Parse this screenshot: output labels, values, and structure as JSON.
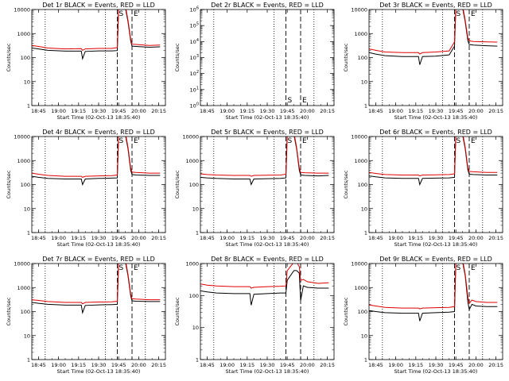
{
  "figure": {
    "x_tick_labels": [
      "18:45",
      "19:00",
      "19:15",
      "19:30",
      "19:45",
      "20:00",
      "20:15"
    ],
    "xlabel": "Start Time (02-Oct-13 18:35:40)",
    "ylabel": "Counts/sec",
    "colors": {
      "events": "#000000",
      "lld": "#e00000",
      "background": "#ffffff"
    }
  },
  "chart_data": [
    {
      "type": "line",
      "title": "Det 1r BLACK = Events, RED = LLD",
      "ylog": true,
      "yrange": [
        1,
        10000
      ],
      "ytick_labels": [
        "1",
        "10",
        "100",
        "1000",
        "10000"
      ],
      "xrange_min": [
        0,
        100
      ],
      "dotted_lines_min": [
        10,
        55,
        85
      ],
      "dashed_lines_min": [
        64,
        75
      ],
      "markers": [
        {
          "label": "S",
          "x_min": 64
        },
        {
          "label": "E",
          "x_min": 75
        }
      ],
      "series": [
        {
          "color": "#000000",
          "x_min": [
            0,
            5,
            12,
            25,
            37,
            38,
            40,
            50,
            60,
            64,
            65,
            70,
            72,
            74,
            75,
            78,
            88,
            96
          ],
          "y": [
            250,
            230,
            200,
            185,
            185,
            90,
            180,
            190,
            190,
            195,
            12000,
            12000,
            3000,
            500,
            300,
            290,
            270,
            280
          ]
        },
        {
          "color": "#e00000",
          "x_min": [
            0,
            5,
            12,
            25,
            37,
            38,
            40,
            50,
            60,
            64,
            65,
            70,
            72,
            74,
            75,
            78,
            88,
            96
          ],
          "y": [
            320,
            290,
            250,
            230,
            235,
            200,
            230,
            240,
            240,
            260,
            15000,
            15000,
            3500,
            600,
            360,
            350,
            320,
            330
          ]
        }
      ]
    },
    {
      "type": "line",
      "title": "Det 2r BLACK = Events, RED = LLD",
      "ylog": true,
      "yrange": [
        1,
        1000000
      ],
      "ytick_labels": [
        "10^0",
        "10^1",
        "10^2",
        "10^3",
        "10^4",
        "10^5",
        "10^6"
      ],
      "xrange_min": [
        0,
        100
      ],
      "dotted_lines_min": [
        10,
        55,
        85
      ],
      "dashed_lines_min": [
        64,
        75
      ],
      "markers": [
        {
          "label": "S",
          "x_min": 64
        },
        {
          "label": "E",
          "x_min": 75
        }
      ],
      "series": []
    },
    {
      "type": "line",
      "title": "Det 3r BLACK = Events, RED = LLD",
      "ylog": true,
      "yrange": [
        1,
        10000
      ],
      "ytick_labels": [
        "1",
        "10",
        "100",
        "1000",
        "10000"
      ],
      "xrange_min": [
        0,
        100
      ],
      "dotted_lines_min": [
        10,
        55,
        85
      ],
      "dashed_lines_min": [
        64,
        75
      ],
      "markers": [
        {
          "label": "S",
          "x_min": 64
        },
        {
          "label": "E",
          "x_min": 75
        }
      ],
      "series": [
        {
          "color": "#000000",
          "x_min": [
            0,
            5,
            12,
            25,
            37,
            38,
            40,
            50,
            60,
            64,
            65,
            70,
            72,
            74,
            75,
            78,
            88,
            96
          ],
          "y": [
            160,
            140,
            120,
            110,
            110,
            50,
            110,
            115,
            130,
            300,
            12000,
            12000,
            3000,
            500,
            350,
            330,
            310,
            300
          ]
        },
        {
          "color": "#e00000",
          "x_min": [
            0,
            5,
            12,
            25,
            37,
            38,
            40,
            50,
            60,
            64,
            65,
            70,
            72,
            74,
            75,
            78,
            88,
            96
          ],
          "y": [
            230,
            200,
            170,
            160,
            160,
            140,
            160,
            170,
            190,
            450,
            15000,
            15000,
            3500,
            650,
            500,
            470,
            450,
            440
          ]
        }
      ]
    },
    {
      "type": "line",
      "title": "Det 4r BLACK = Events, RED = LLD",
      "ylog": true,
      "yrange": [
        1,
        10000
      ],
      "ytick_labels": [
        "1",
        "10",
        "100",
        "1000",
        "10000"
      ],
      "xrange_min": [
        0,
        100
      ],
      "dotted_lines_min": [
        10,
        55,
        85
      ],
      "dashed_lines_min": [
        64,
        75
      ],
      "markers": [
        {
          "label": "S",
          "x_min": 64
        },
        {
          "label": "E",
          "x_min": 75
        }
      ],
      "series": [
        {
          "color": "#000000",
          "x_min": [
            0,
            5,
            12,
            25,
            37,
            38,
            40,
            50,
            60,
            64,
            65,
            70,
            72,
            74,
            75,
            78,
            88,
            96
          ],
          "y": [
            220,
            200,
            180,
            170,
            170,
            100,
            170,
            180,
            185,
            190,
            12000,
            12000,
            3000,
            400,
            260,
            250,
            240,
            240
          ]
        },
        {
          "color": "#e00000",
          "x_min": [
            0,
            5,
            12,
            25,
            37,
            38,
            40,
            50,
            60,
            64,
            65,
            70,
            72,
            74,
            75,
            78,
            88,
            96
          ],
          "y": [
            300,
            270,
            240,
            220,
            220,
            200,
            220,
            230,
            235,
            250,
            15000,
            15000,
            3500,
            500,
            330,
            320,
            300,
            300
          ]
        }
      ]
    },
    {
      "type": "line",
      "title": "Det 5r BLACK = Events, RED = LLD",
      "ylog": true,
      "yrange": [
        1,
        10000
      ],
      "ytick_labels": [
        "1",
        "10",
        "100",
        "1000",
        "10000"
      ],
      "xrange_min": [
        0,
        100
      ],
      "dotted_lines_min": [
        10,
        55,
        85
      ],
      "dashed_lines_min": [
        64,
        75
      ],
      "markers": [
        {
          "label": "S",
          "x_min": 64
        },
        {
          "label": "E",
          "x_min": 75
        }
      ],
      "series": [
        {
          "color": "#000000",
          "x_min": [
            0,
            5,
            12,
            25,
            37,
            38,
            40,
            50,
            60,
            64,
            65,
            70,
            72,
            74,
            75,
            78,
            88,
            96
          ],
          "y": [
            200,
            190,
            180,
            170,
            170,
            100,
            170,
            175,
            180,
            190,
            12000,
            12000,
            3000,
            400,
            250,
            240,
            230,
            240
          ]
        },
        {
          "color": "#e00000",
          "x_min": [
            0,
            5,
            12,
            25,
            37,
            38,
            40,
            50,
            60,
            64,
            65,
            70,
            72,
            74,
            75,
            78,
            88,
            96
          ],
          "y": [
            280,
            260,
            250,
            240,
            240,
            220,
            240,
            245,
            250,
            270,
            15000,
            15000,
            3500,
            500,
            320,
            310,
            300,
            300
          ]
        }
      ]
    },
    {
      "type": "line",
      "title": "Det 6r BLACK = Events, RED = LLD",
      "ylog": true,
      "yrange": [
        1,
        10000
      ],
      "ytick_labels": [
        "1",
        "10",
        "100",
        "1000",
        "10000"
      ],
      "xrange_min": [
        0,
        100
      ],
      "dotted_lines_min": [
        10,
        55,
        85
      ],
      "dashed_lines_min": [
        64,
        75
      ],
      "markers": [
        {
          "label": "S",
          "x_min": 64
        },
        {
          "label": "E",
          "x_min": 75
        }
      ],
      "series": [
        {
          "color": "#000000",
          "x_min": [
            0,
            5,
            12,
            25,
            37,
            38,
            40,
            50,
            60,
            64,
            65,
            70,
            72,
            74,
            75,
            78,
            88,
            96
          ],
          "y": [
            230,
            210,
            190,
            180,
            180,
            100,
            180,
            185,
            190,
            200,
            12000,
            12000,
            3000,
            400,
            270,
            260,
            250,
            250
          ]
        },
        {
          "color": "#e00000",
          "x_min": [
            0,
            5,
            12,
            25,
            37,
            38,
            40,
            50,
            60,
            64,
            65,
            70,
            72,
            74,
            75,
            78,
            88,
            96
          ],
          "y": [
            320,
            290,
            260,
            250,
            250,
            230,
            250,
            255,
            260,
            280,
            15000,
            15000,
            3500,
            500,
            350,
            340,
            320,
            320
          ]
        }
      ]
    },
    {
      "type": "line",
      "title": "Det 7r BLACK = Events, RED = LLD",
      "ylog": true,
      "yrange": [
        1,
        10000
      ],
      "ytick_labels": [
        "1",
        "10",
        "100",
        "1000",
        "10000"
      ],
      "xrange_min": [
        0,
        100
      ],
      "dotted_lines_min": [
        10,
        55,
        85
      ],
      "dashed_lines_min": [
        64,
        75
      ],
      "markers": [
        {
          "label": "S",
          "x_min": 64
        },
        {
          "label": "E",
          "x_min": 75
        }
      ],
      "series": [
        {
          "color": "#000000",
          "x_min": [
            0,
            5,
            12,
            25,
            37,
            38,
            40,
            50,
            60,
            64,
            65,
            70,
            72,
            74,
            75,
            78,
            88,
            96
          ],
          "y": [
            240,
            220,
            200,
            185,
            185,
            90,
            180,
            190,
            195,
            200,
            12000,
            12000,
            3000,
            450,
            280,
            270,
            260,
            260
          ]
        },
        {
          "color": "#e00000",
          "x_min": [
            0,
            5,
            12,
            25,
            37,
            38,
            40,
            50,
            60,
            64,
            65,
            70,
            72,
            74,
            75,
            78,
            88,
            96
          ],
          "y": [
            310,
            290,
            260,
            240,
            240,
            210,
            240,
            250,
            255,
            270,
            15000,
            15000,
            3500,
            550,
            340,
            330,
            310,
            310
          ]
        }
      ]
    },
    {
      "type": "line",
      "title": "Det 8r BLACK = Events, RED = LLD",
      "ylog": true,
      "yrange": [
        1,
        1000
      ],
      "ytick_labels": [
        "1",
        "10",
        "100",
        "1000"
      ],
      "xrange_min": [
        0,
        100
      ],
      "dotted_lines_min": [
        10,
        55,
        85
      ],
      "dashed_lines_min": [
        64,
        75
      ],
      "markers": [],
      "series": [
        {
          "color": "#000000",
          "x_min": [
            0,
            5,
            12,
            25,
            37,
            38,
            40,
            50,
            60,
            64,
            65,
            70,
            72,
            74,
            75,
            77,
            80,
            88,
            96
          ],
          "y": [
            140,
            130,
            120,
            115,
            115,
            50,
            110,
            115,
            120,
            120,
            300,
            600,
            600,
            500,
            70,
            200,
            180,
            170,
            170
          ]
        },
        {
          "color": "#e00000",
          "x_min": [
            0,
            5,
            12,
            25,
            37,
            38,
            40,
            50,
            60,
            64,
            65,
            70,
            72,
            74,
            75,
            77,
            80,
            88,
            96
          ],
          "y": [
            230,
            210,
            200,
            190,
            190,
            170,
            180,
            190,
            195,
            200,
            600,
            1100,
            1100,
            800,
            300,
            320,
            270,
            240,
            250
          ]
        }
      ]
    },
    {
      "type": "line",
      "title": "Det 9r BLACK = Events, RED = LLD",
      "ylog": true,
      "yrange": [
        1,
        10000
      ],
      "ytick_labels": [
        "1",
        "10",
        "100",
        "1000",
        "10000"
      ],
      "xrange_min": [
        0,
        100
      ],
      "dotted_lines_min": [
        10,
        55,
        85
      ],
      "dashed_lines_min": [
        64,
        75
      ],
      "markers": [
        {
          "label": "S",
          "x_min": 64
        },
        {
          "label": "E",
          "x_min": 75
        }
      ],
      "series": [
        {
          "color": "#000000",
          "x_min": [
            0,
            5,
            12,
            25,
            37,
            38,
            40,
            50,
            60,
            64,
            65,
            70,
            72,
            74,
            75,
            77,
            80,
            88,
            96
          ],
          "y": [
            110,
            100,
            90,
            85,
            85,
            40,
            85,
            90,
            95,
            100,
            12000,
            12000,
            3000,
            250,
            120,
            200,
            170,
            160,
            160
          ]
        },
        {
          "color": "#e00000",
          "x_min": [
            0,
            5,
            12,
            25,
            37,
            38,
            40,
            50,
            60,
            64,
            65,
            70,
            72,
            74,
            75,
            77,
            80,
            88,
            96
          ],
          "y": [
            190,
            170,
            150,
            140,
            140,
            130,
            140,
            145,
            150,
            160,
            15000,
            15000,
            3500,
            400,
            220,
            300,
            260,
            240,
            240
          ]
        }
      ]
    }
  ]
}
